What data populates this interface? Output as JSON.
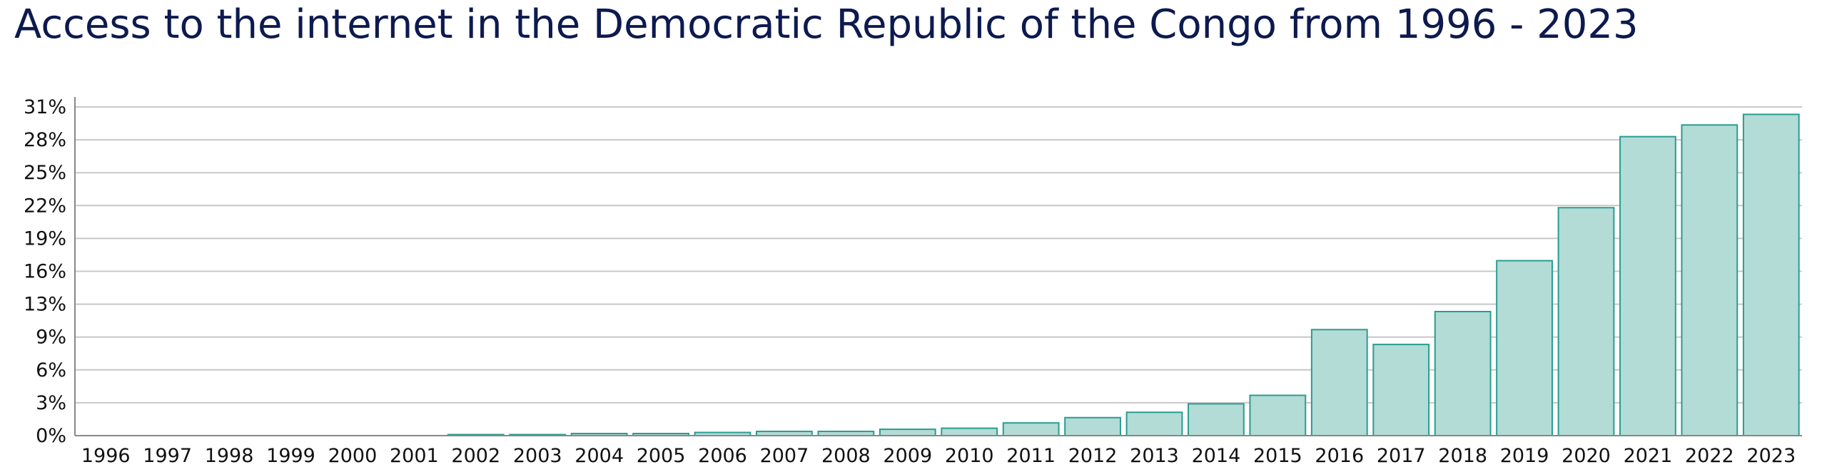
{
  "chart_data": {
    "type": "bar",
    "title": "Access to the internet in the Democratic Republic of the Congo from 1996 - 2023",
    "xlabel": "",
    "ylabel": "",
    "categories": [
      "1996",
      "1997",
      "1998",
      "1999",
      "2000",
      "2001",
      "2002",
      "2003",
      "2004",
      "2005",
      "2006",
      "2007",
      "2008",
      "2009",
      "2010",
      "2011",
      "2012",
      "2013",
      "2014",
      "2015",
      "2016",
      "2017",
      "2018",
      "2019",
      "2020",
      "2021",
      "2022",
      "2023"
    ],
    "values": [
      0,
      0,
      0,
      0,
      0,
      0,
      0.1,
      0.1,
      0.2,
      0.2,
      0.3,
      0.4,
      0.4,
      0.6,
      0.7,
      1.2,
      1.7,
      2.2,
      3.0,
      3.8,
      10.0,
      8.6,
      11.7,
      16.5,
      21.5,
      28.2,
      29.3,
      30.3
    ],
    "yticks": [
      "0%",
      "3%",
      "6%",
      "9%",
      "13%",
      "16%",
      "19%",
      "22%",
      "25%",
      "28%",
      "31%"
    ],
    "ylim": [
      0,
      31
    ],
    "grid": true,
    "legend": "none",
    "colors": {
      "bar_fill": "#b3dcd7",
      "bar_stroke": "#2a9d8f",
      "grid": "#c8c8c8",
      "axis": "#888888",
      "title": "#0d1a4f"
    }
  }
}
